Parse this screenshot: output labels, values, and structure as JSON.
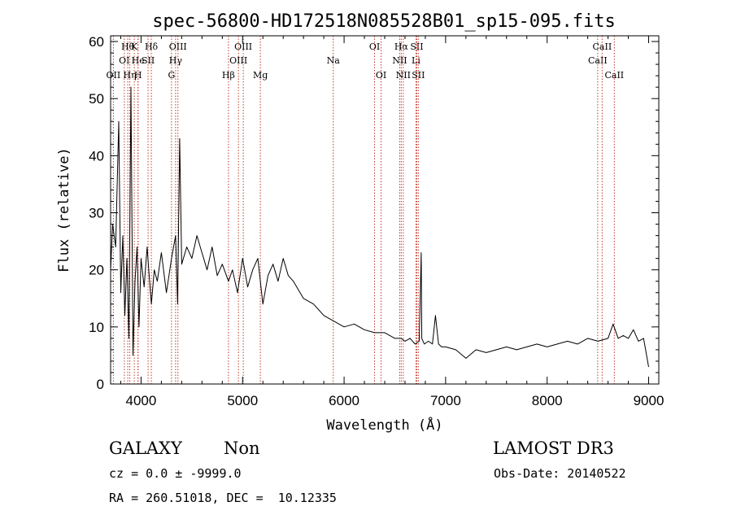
{
  "chart_data": {
    "type": "line",
    "title": "spec-56800-HD172518N085528B01_sp15-095.fits",
    "xlabel": "Wavelength (Å)",
    "ylabel": "Flux (relative)",
    "xlim": [
      3700,
      9100
    ],
    "ylim": [
      0,
      61
    ],
    "x_ticks": [
      4000,
      5000,
      6000,
      7000,
      8000,
      9000
    ],
    "y_ticks": [
      0,
      10,
      20,
      30,
      40,
      50,
      60
    ],
    "grid": false,
    "line_color": "#000000",
    "marker_color": "#c0392b",
    "series": [
      {
        "x": [
          3700,
          3720,
          3750,
          3780,
          3800,
          3820,
          3840,
          3860,
          3880,
          3900,
          3920,
          3940,
          3960,
          3980,
          4000,
          4030,
          4060,
          4080,
          4101,
          4130,
          4160,
          4200,
          4250,
          4300,
          4340,
          4360,
          4380,
          4400,
          4450,
          4500,
          4550,
          4600,
          4650,
          4700,
          4750,
          4800,
          4861,
          4900,
          4950,
          5000,
          5050,
          5100,
          5150,
          5200,
          5250,
          5300,
          5350,
          5400,
          5450,
          5500,
          5600,
          5700,
          5800,
          5900,
          6000,
          6100,
          6200,
          6300,
          6400,
          6500,
          6560,
          6600,
          6650,
          6700,
          6740,
          6760,
          6765,
          6790,
          6830,
          6870,
          6900,
          6930,
          6960,
          7000,
          7100,
          7200,
          7300,
          7400,
          7500,
          7600,
          7700,
          7800,
          7900,
          8000,
          8100,
          8200,
          8300,
          8400,
          8500,
          8600,
          8650,
          8700,
          8750,
          8800,
          8850,
          8900,
          8950,
          9000
        ],
        "y": [
          20,
          28,
          24,
          46,
          16,
          26,
          12,
          22,
          8,
          52,
          5,
          18,
          24,
          10,
          22,
          17,
          24,
          19,
          14,
          20,
          18,
          23,
          16,
          22,
          26,
          14,
          43,
          21,
          24,
          22,
          26,
          23,
          20,
          24,
          19,
          21,
          18,
          20,
          16,
          22,
          17,
          20,
          22,
          14,
          19,
          21,
          18,
          22,
          19,
          18,
          15,
          14,
          12,
          11,
          10,
          10.5,
          9.5,
          9,
          9,
          8,
          8,
          7.5,
          8,
          7,
          7.5,
          23,
          8,
          7,
          7.5,
          7,
          12,
          7,
          6.5,
          6.5,
          6,
          4.5,
          6,
          5.5,
          6,
          6.5,
          6,
          6.5,
          7,
          6.5,
          7,
          7.5,
          7,
          8,
          7.5,
          8,
          10.5,
          8,
          8.5,
          8,
          9.5,
          7.5,
          8,
          3
        ]
      }
    ],
    "line_markers": [
      {
        "wl": 3727,
        "label": "OII",
        "row": 2
      },
      {
        "wl": 3835,
        "label": "OI",
        "row": 1
      },
      {
        "wl": 3869,
        "label": "Hθ",
        "row": 0
      },
      {
        "wl": 3889,
        "label": "Hη",
        "row": 2
      },
      {
        "wl": 3933,
        "label": "K",
        "row": 0
      },
      {
        "wl": 3970,
        "label": "He",
        "row": 1
      },
      {
        "wl": 3970,
        "label": "H",
        "row": 2
      },
      {
        "wl": 4069,
        "label": "SII",
        "row": 1
      },
      {
        "wl": 4101,
        "label": "Hδ",
        "row": 0
      },
      {
        "wl": 4300,
        "label": "G",
        "row": 2
      },
      {
        "wl": 4340,
        "label": "Hγ",
        "row": 1
      },
      {
        "wl": 4363,
        "label": "OIII",
        "row": 0
      },
      {
        "wl": 4861,
        "label": "Hβ",
        "row": 2
      },
      {
        "wl": 4959,
        "label": "OIII",
        "row": 1
      },
      {
        "wl": 5007,
        "label": "OIII",
        "row": 0
      },
      {
        "wl": 5175,
        "label": "Mg",
        "row": 2
      },
      {
        "wl": 5893,
        "label": "Na",
        "row": 1
      },
      {
        "wl": 6300,
        "label": "OI",
        "row": 0
      },
      {
        "wl": 6364,
        "label": "OI",
        "row": 2
      },
      {
        "wl": 6548,
        "label": "NII",
        "row": 1
      },
      {
        "wl": 6563,
        "label": "Hα",
        "row": 0
      },
      {
        "wl": 6583,
        "label": "NII",
        "row": 2
      },
      {
        "wl": 6708,
        "label": "Li",
        "row": 1
      },
      {
        "wl": 6716,
        "label": "SII",
        "row": 0
      },
      {
        "wl": 6731,
        "label": "SII",
        "row": 2
      },
      {
        "wl": 8498,
        "label": "CaII",
        "row": 1
      },
      {
        "wl": 8542,
        "label": "CaII",
        "row": 0
      },
      {
        "wl": 8662,
        "label": "CaII",
        "row": 2
      }
    ]
  },
  "info": {
    "object_class": "GALAXY",
    "subclass": "Non",
    "survey": "LAMOST DR3",
    "cz": "cz = 0.0 ± -9999.0",
    "obs_date": "Obs-Date: 20140522",
    "coords": "RA = 260.51018, DEC =  10.12335"
  }
}
